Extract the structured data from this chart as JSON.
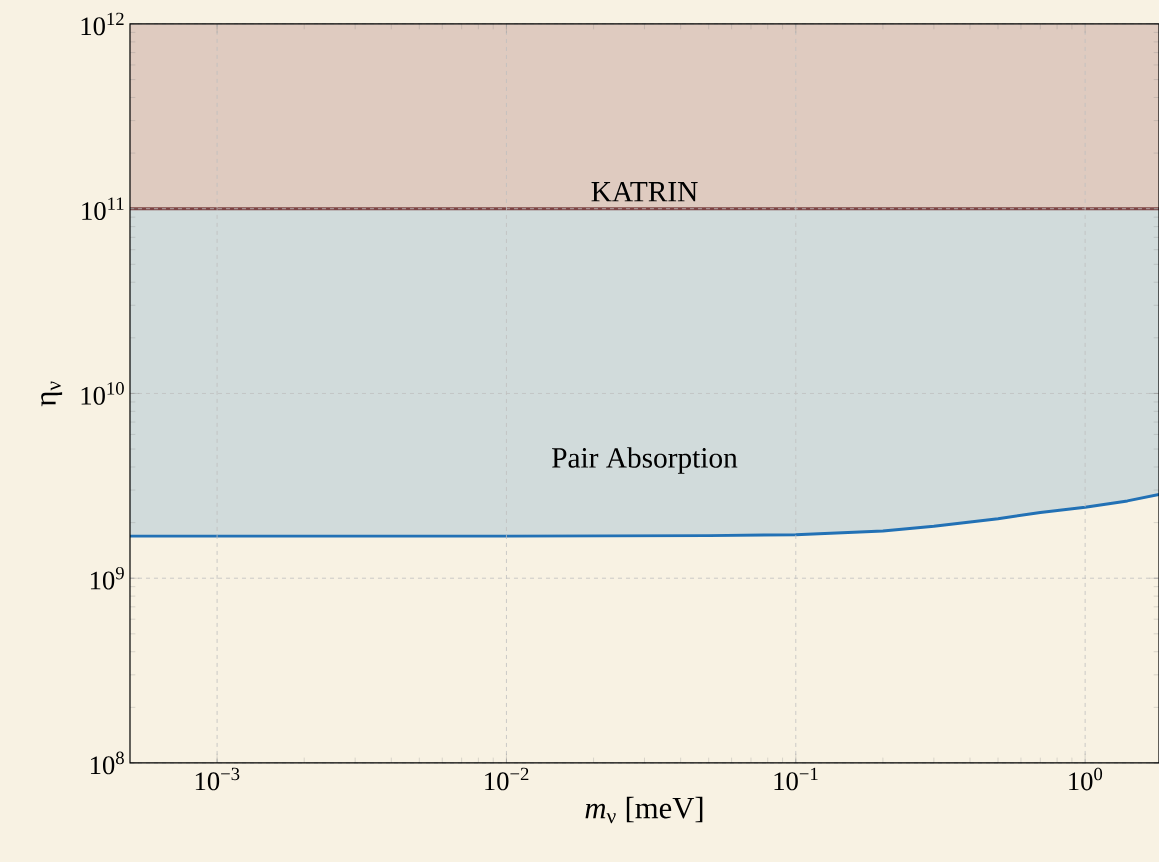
{
  "chart_data": {
    "type": "line",
    "xlabel": "*m*$_{ν}$ [meV]",
    "ylabel": "η$_{ν}$",
    "log": "xy",
    "grid": true,
    "xlim": [
      0.0005,
      1.8
    ],
    "ylim": [
      100000000.0,
      1000000000000.0
    ],
    "xticks": [
      {
        "value": 0.001,
        "label": "10$^{−3}$"
      },
      {
        "value": 0.01,
        "label": "10$^{−2}$"
      },
      {
        "value": 0.1,
        "label": "10$^{−1}$"
      },
      {
        "value": 1,
        "label": "10$^{0}$"
      }
    ],
    "yticks": [
      {
        "value": 100000000.0,
        "label": "10$^{8}$"
      },
      {
        "value": 1000000000.0,
        "label": "10$^{9}$"
      },
      {
        "value": 10000000000.0,
        "label": "10$^{10}$"
      },
      {
        "value": 100000000000.0,
        "label": "10$^{11}$"
      },
      {
        "value": 1000000000000.0,
        "label": "10$^{12}$"
      }
    ],
    "series": [
      {
        "name": "Pair Absorption",
        "color": "#2271b5",
        "x": [
          0.0005,
          0.001,
          0.01,
          0.05,
          0.1,
          0.2,
          0.3,
          0.5,
          0.7,
          1,
          1.4,
          1.8
        ],
        "values": [
          1690000000.0,
          1690000000.0,
          1690000000.0,
          1700000000.0,
          1720000000.0,
          1800000000.0,
          1910000000.0,
          2100000000.0,
          2270000000.0,
          2420000000.0,
          2620000000.0,
          2840000000.0
        ],
        "lower": [
          1690000000.0,
          1690000000.0,
          1690000000.0,
          1700000000.0,
          1720000000.0,
          1800000000.0,
          1910000000.0,
          2100000000.0,
          2270000000.0,
          2420000000.0,
          2620000000.0,
          2840000000.0
        ],
        "upper": [
          100000000000.0,
          100000000000.0,
          100000000000.0,
          100000000000.0,
          100000000000.0,
          100000000000.0,
          100000000000.0,
          100000000000.0,
          100000000000.0,
          100000000000.0,
          100000000000.0,
          100000000000.0
        ]
      }
    ],
    "ref_lines": [
      {
        "axis": "y",
        "value": 100000000000.0,
        "label": "KATRIN",
        "color": "#7d4545"
      }
    ],
    "bands": [
      {
        "axis": "y",
        "from": 100000000000.0,
        "to": 1000000000000.0,
        "color": "#dfcbc0"
      }
    ]
  }
}
